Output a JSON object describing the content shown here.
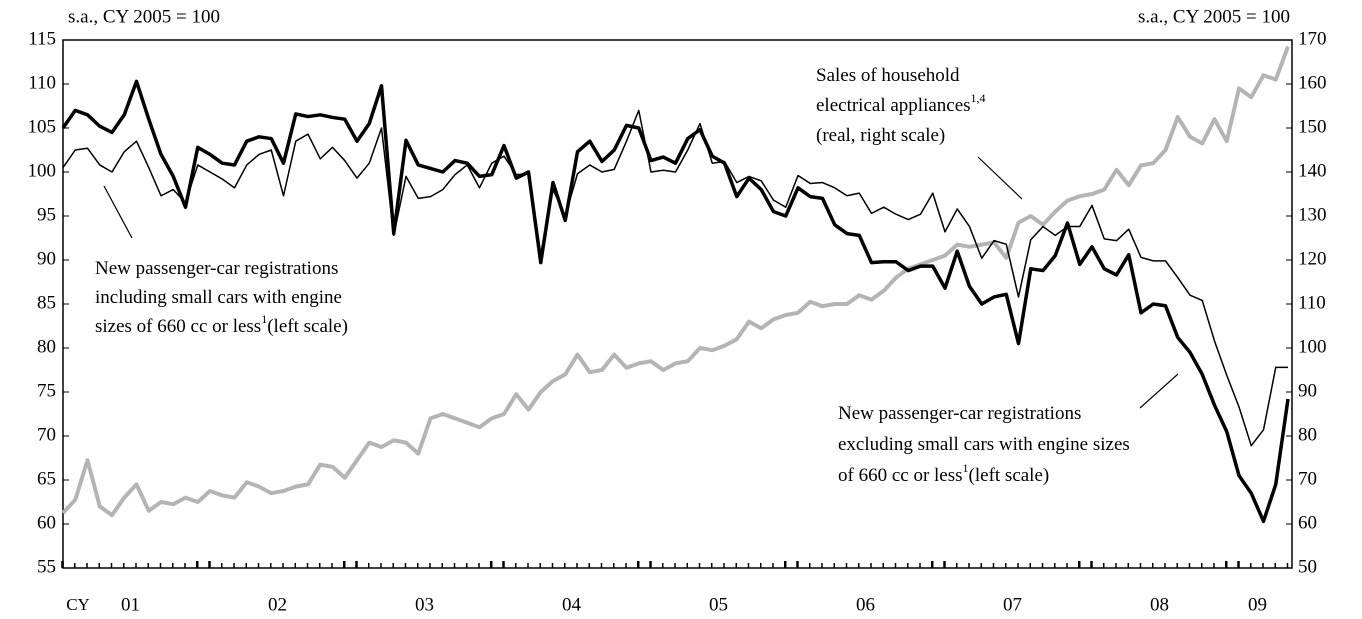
{
  "chart_data": {
    "type": "line",
    "y_label": "s.a., CY 2005 = 100",
    "y2_label": "s.a., CY 2005 = 100",
    "x_prefix": "CY",
    "categories": [
      null,
      null,
      null,
      null,
      null,
      null,
      "01",
      null,
      null,
      null,
      null,
      null,
      null,
      null,
      null,
      null,
      null,
      null,
      "02",
      null,
      null,
      null,
      null,
      null,
      null,
      null,
      null,
      null,
      null,
      null,
      "03",
      null,
      null,
      null,
      null,
      null,
      null,
      null,
      null,
      null,
      null,
      null,
      "04",
      null,
      null,
      null,
      null,
      null,
      null,
      null,
      null,
      null,
      null,
      null,
      "05",
      null,
      null,
      null,
      null,
      null,
      null,
      null,
      null,
      null,
      null,
      null,
      "06",
      null,
      null,
      null,
      null,
      null,
      null,
      null,
      null,
      null,
      null,
      null,
      "07",
      null,
      null,
      null,
      null,
      null,
      null,
      null,
      null,
      null,
      null,
      null,
      "08",
      null,
      null,
      null,
      null,
      null,
      null,
      null,
      "09",
      null,
      null
    ],
    "ylim": [
      55,
      115
    ],
    "yticks": [
      55,
      60,
      65,
      70,
      75,
      80,
      85,
      90,
      95,
      100,
      105,
      110,
      115
    ],
    "y2lim": [
      50,
      170
    ],
    "y2ticks": [
      50,
      60,
      70,
      80,
      90,
      100,
      110,
      120,
      130,
      140,
      150,
      160,
      170
    ],
    "series": [
      {
        "color": "#b4b4b4",
        "line_width": 4,
        "axis": "y2",
        "values": [
          62.5,
          65.5,
          74.5,
          64,
          62,
          66,
          69,
          63,
          65,
          64.5,
          66,
          65,
          67.5,
          66.5,
          66,
          69.5,
          68.5,
          67,
          67.5,
          68.5,
          69,
          73.5,
          73,
          70.5,
          74.5,
          78.5,
          77.5,
          79,
          78.5,
          76,
          84,
          85,
          84,
          83,
          82,
          84,
          85,
          89.5,
          86,
          90,
          92.5,
          94,
          98.5,
          94.5,
          95,
          98.5,
          95.5,
          96.5,
          97,
          95,
          96.5,
          97,
          100,
          99.5,
          100.5,
          102,
          106,
          104.5,
          106.5,
          107.5,
          108,
          110.5,
          109.5,
          110,
          110,
          112,
          111,
          113,
          116,
          118,
          119,
          120,
          121,
          123.5,
          123,
          123.5,
          124,
          120.5,
          128.5,
          130,
          128,
          131,
          133.5,
          134.5,
          135,
          136,
          140.5,
          137,
          141.5,
          142,
          145,
          152.5,
          148,
          146.5,
          152,
          147,
          159,
          157,
          162,
          161,
          168.5
        ]
      },
      {
        "color": "#000000",
        "line_width": 1.5,
        "values": [
          100.5,
          102.5,
          102.7,
          100.8,
          100,
          102.3,
          103.5,
          100.5,
          97.3,
          98,
          96.5,
          100.8,
          100,
          99.2,
          98.2,
          100.8,
          102,
          102.5,
          97.3,
          103.5,
          104.3,
          101.5,
          102.8,
          101.3,
          99.3,
          101,
          105,
          92.8,
          99.5,
          97,
          97.2,
          98,
          99.7,
          100.8,
          98.2,
          101,
          101.8,
          99.7,
          99.8,
          90.7,
          98,
          95,
          99.8,
          100.8,
          100,
          100.3,
          103.5,
          107,
          100,
          100.2,
          100,
          102.5,
          105.5,
          101,
          101.2,
          98.8,
          99.5,
          99,
          96.8,
          96,
          99.6,
          98.7,
          98.8,
          98.2,
          97.3,
          97.6,
          95.3,
          96,
          95.2,
          94.6,
          95.2,
          97.6,
          93.2,
          95.8,
          93.8,
          90.2,
          92.2,
          91.8,
          85.8,
          92.3,
          93.8,
          92.8,
          93.8,
          93.8,
          96.2,
          92.4,
          92.2,
          93.5,
          90.3,
          89.9,
          89.9,
          88,
          86,
          85.4,
          80.8,
          76.9,
          73.3,
          68.9,
          70.7,
          77.8,
          77.8
        ]
      },
      {
        "color": "#000000",
        "line_width": 3.5,
        "values": [
          105,
          107,
          106.5,
          105.2,
          104.5,
          106.5,
          110.3,
          106,
          102,
          99.5,
          96,
          102.8,
          102,
          101,
          100.8,
          103.5,
          104,
          103.8,
          101,
          106.6,
          106.3,
          106.5,
          106.2,
          106,
          103.5,
          105.5,
          109.8,
          93,
          103.6,
          100.8,
          100.4,
          100,
          101.3,
          101,
          99.5,
          99.7,
          103,
          99.3,
          100,
          89.7,
          98.8,
          94.5,
          102.3,
          103.5,
          101.2,
          102.5,
          105.3,
          105,
          101.3,
          101.7,
          101,
          103.8,
          104.8,
          101.8,
          101,
          97.2,
          99.3,
          98,
          95.5,
          95,
          98.2,
          97.2,
          97,
          94,
          93,
          92.8,
          89.7,
          89.8,
          89.8,
          88.8,
          89.3,
          89.3,
          86.8,
          91,
          87,
          85,
          85.8,
          86.1,
          80.5,
          89,
          88.8,
          90.5,
          94.2,
          89.5,
          91.5,
          89,
          88.3,
          90.6,
          84,
          85,
          84.8,
          81.2,
          79.5,
          77,
          73.5,
          70.5,
          65.5,
          63.5,
          60.3,
          64.5,
          74.2
        ]
      }
    ],
    "annotations": [
      {
        "lines": [
          {
            "text": "Sales of household"
          },
          {
            "text": "electrical appliances",
            "sup": "1,4"
          },
          {
            "text": " (real, right scale)"
          }
        ]
      },
      {
        "lines": [
          {
            "text": "New passenger-car registrations"
          },
          {
            "text": "including small cars with engine"
          },
          {
            "text": "sizes of 660 cc or less",
            "sup": "1",
            "after": "(left scale)"
          }
        ]
      },
      {
        "lines": [
          {
            "text": "New passenger-car registrations"
          },
          {
            "text": "excluding small cars with engine sizes"
          },
          {
            "text": "of 660 cc or less",
            "sup": "1",
            "after": "(left scale)"
          }
        ]
      }
    ]
  }
}
